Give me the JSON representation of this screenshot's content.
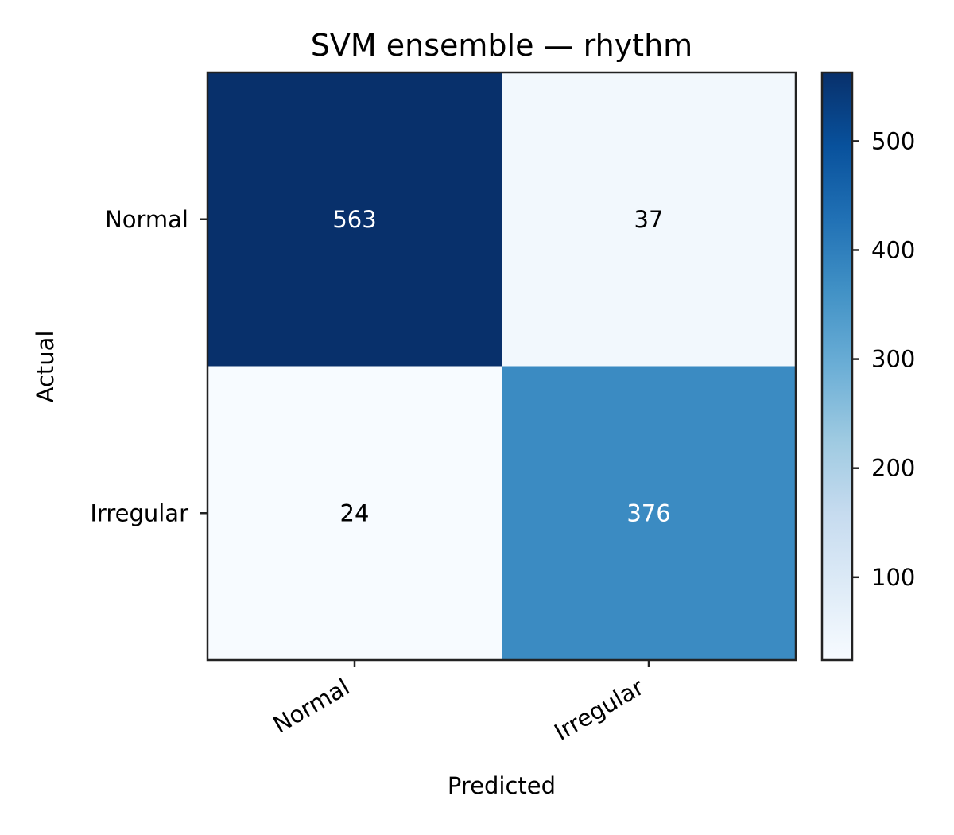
{
  "chart_data": {
    "type": "heatmap",
    "title": "SVM ensemble — rhythm",
    "xlabel": "Predicted",
    "ylabel": "Actual",
    "x_categories": [
      "Normal",
      "Irregular"
    ],
    "y_categories": [
      "Normal",
      "Irregular"
    ],
    "values": [
      [
        563,
        37
      ],
      [
        24,
        376
      ]
    ],
    "colormap": "Blues",
    "color_range": [
      24,
      563
    ],
    "colorbar_ticks": [
      100,
      200,
      300,
      400,
      500
    ],
    "legend": "colorbar-right",
    "grid": false
  }
}
